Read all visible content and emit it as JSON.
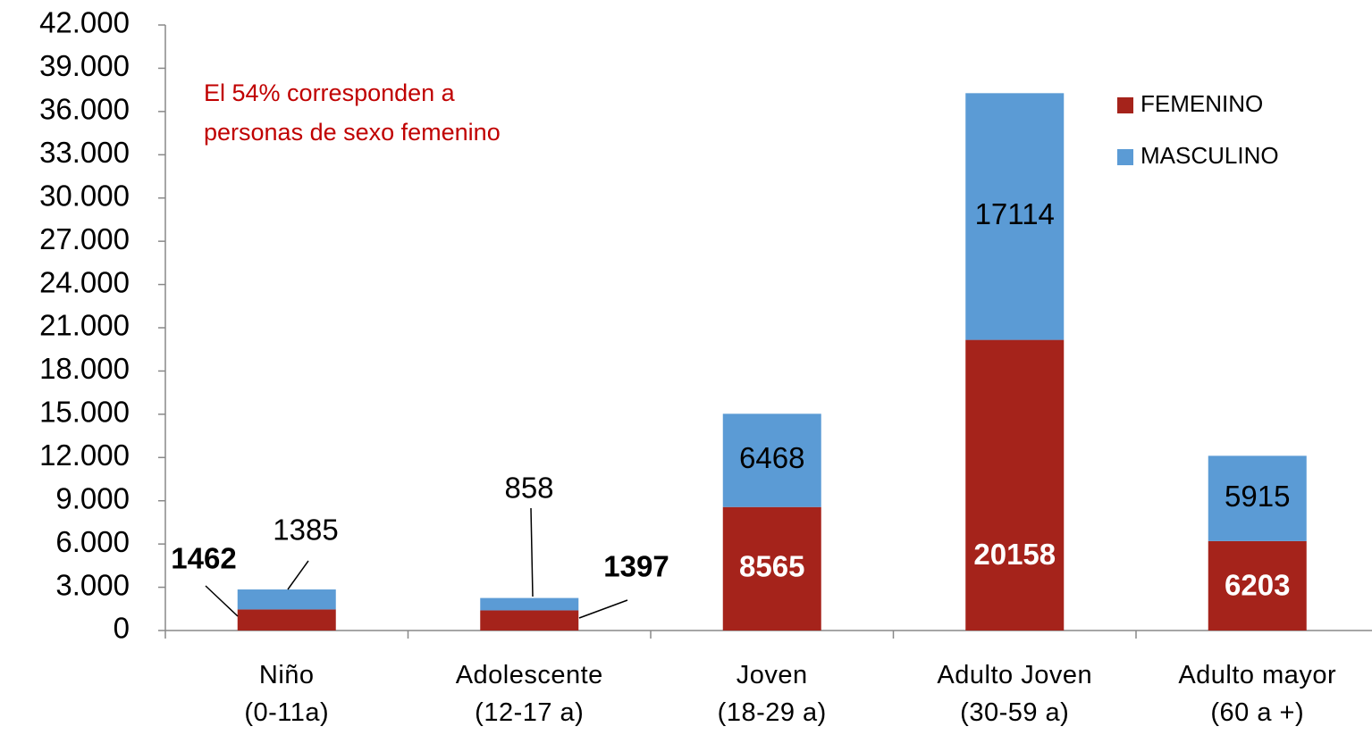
{
  "chart_data": {
    "type": "stacked_bar",
    "annotation": "El 54%  corresponden  a\npersonas de sexo femenino",
    "categories": [
      "Niño\n(0-11a)",
      "Adolescente\n(12-17 a)",
      "Joven\n(18-29 a)",
      "Adulto Joven\n(30-59 a)",
      "Adulto mayor\n(60 a +)"
    ],
    "series": [
      {
        "name": "FEMENINO",
        "color": "#a5231b",
        "values": [
          1462,
          1397,
          8565,
          20158,
          6203
        ]
      },
      {
        "name": "MASCULINO",
        "color": "#5b9bd5",
        "values": [
          1385,
          858,
          6468,
          17114,
          5915
        ]
      }
    ],
    "ylim": [
      0,
      42000
    ],
    "yticks": [
      0,
      {
        "value": 3000,
        "label": "3.000"
      },
      {
        "value": 6000,
        "label": "6.000"
      },
      {
        "value": 9000,
        "label": "9.000"
      },
      {
        "value": 12000,
        "label": "12.000"
      },
      {
        "value": 15000,
        "label": "15.000"
      },
      {
        "value": 18000,
        "label": "18.000"
      },
      {
        "value": 21000,
        "label": "21.000"
      },
      {
        "value": 24000,
        "label": "24.000"
      },
      {
        "value": 27000,
        "label": "27.000"
      },
      {
        "value": 30000,
        "label": "30.000"
      },
      {
        "value": 33000,
        "label": "33.000"
      },
      {
        "value": 36000,
        "label": "36.000"
      },
      {
        "value": 39000,
        "label": "39.000"
      },
      {
        "value": 42000,
        "label": "42.000"
      }
    ],
    "legend": "right"
  }
}
